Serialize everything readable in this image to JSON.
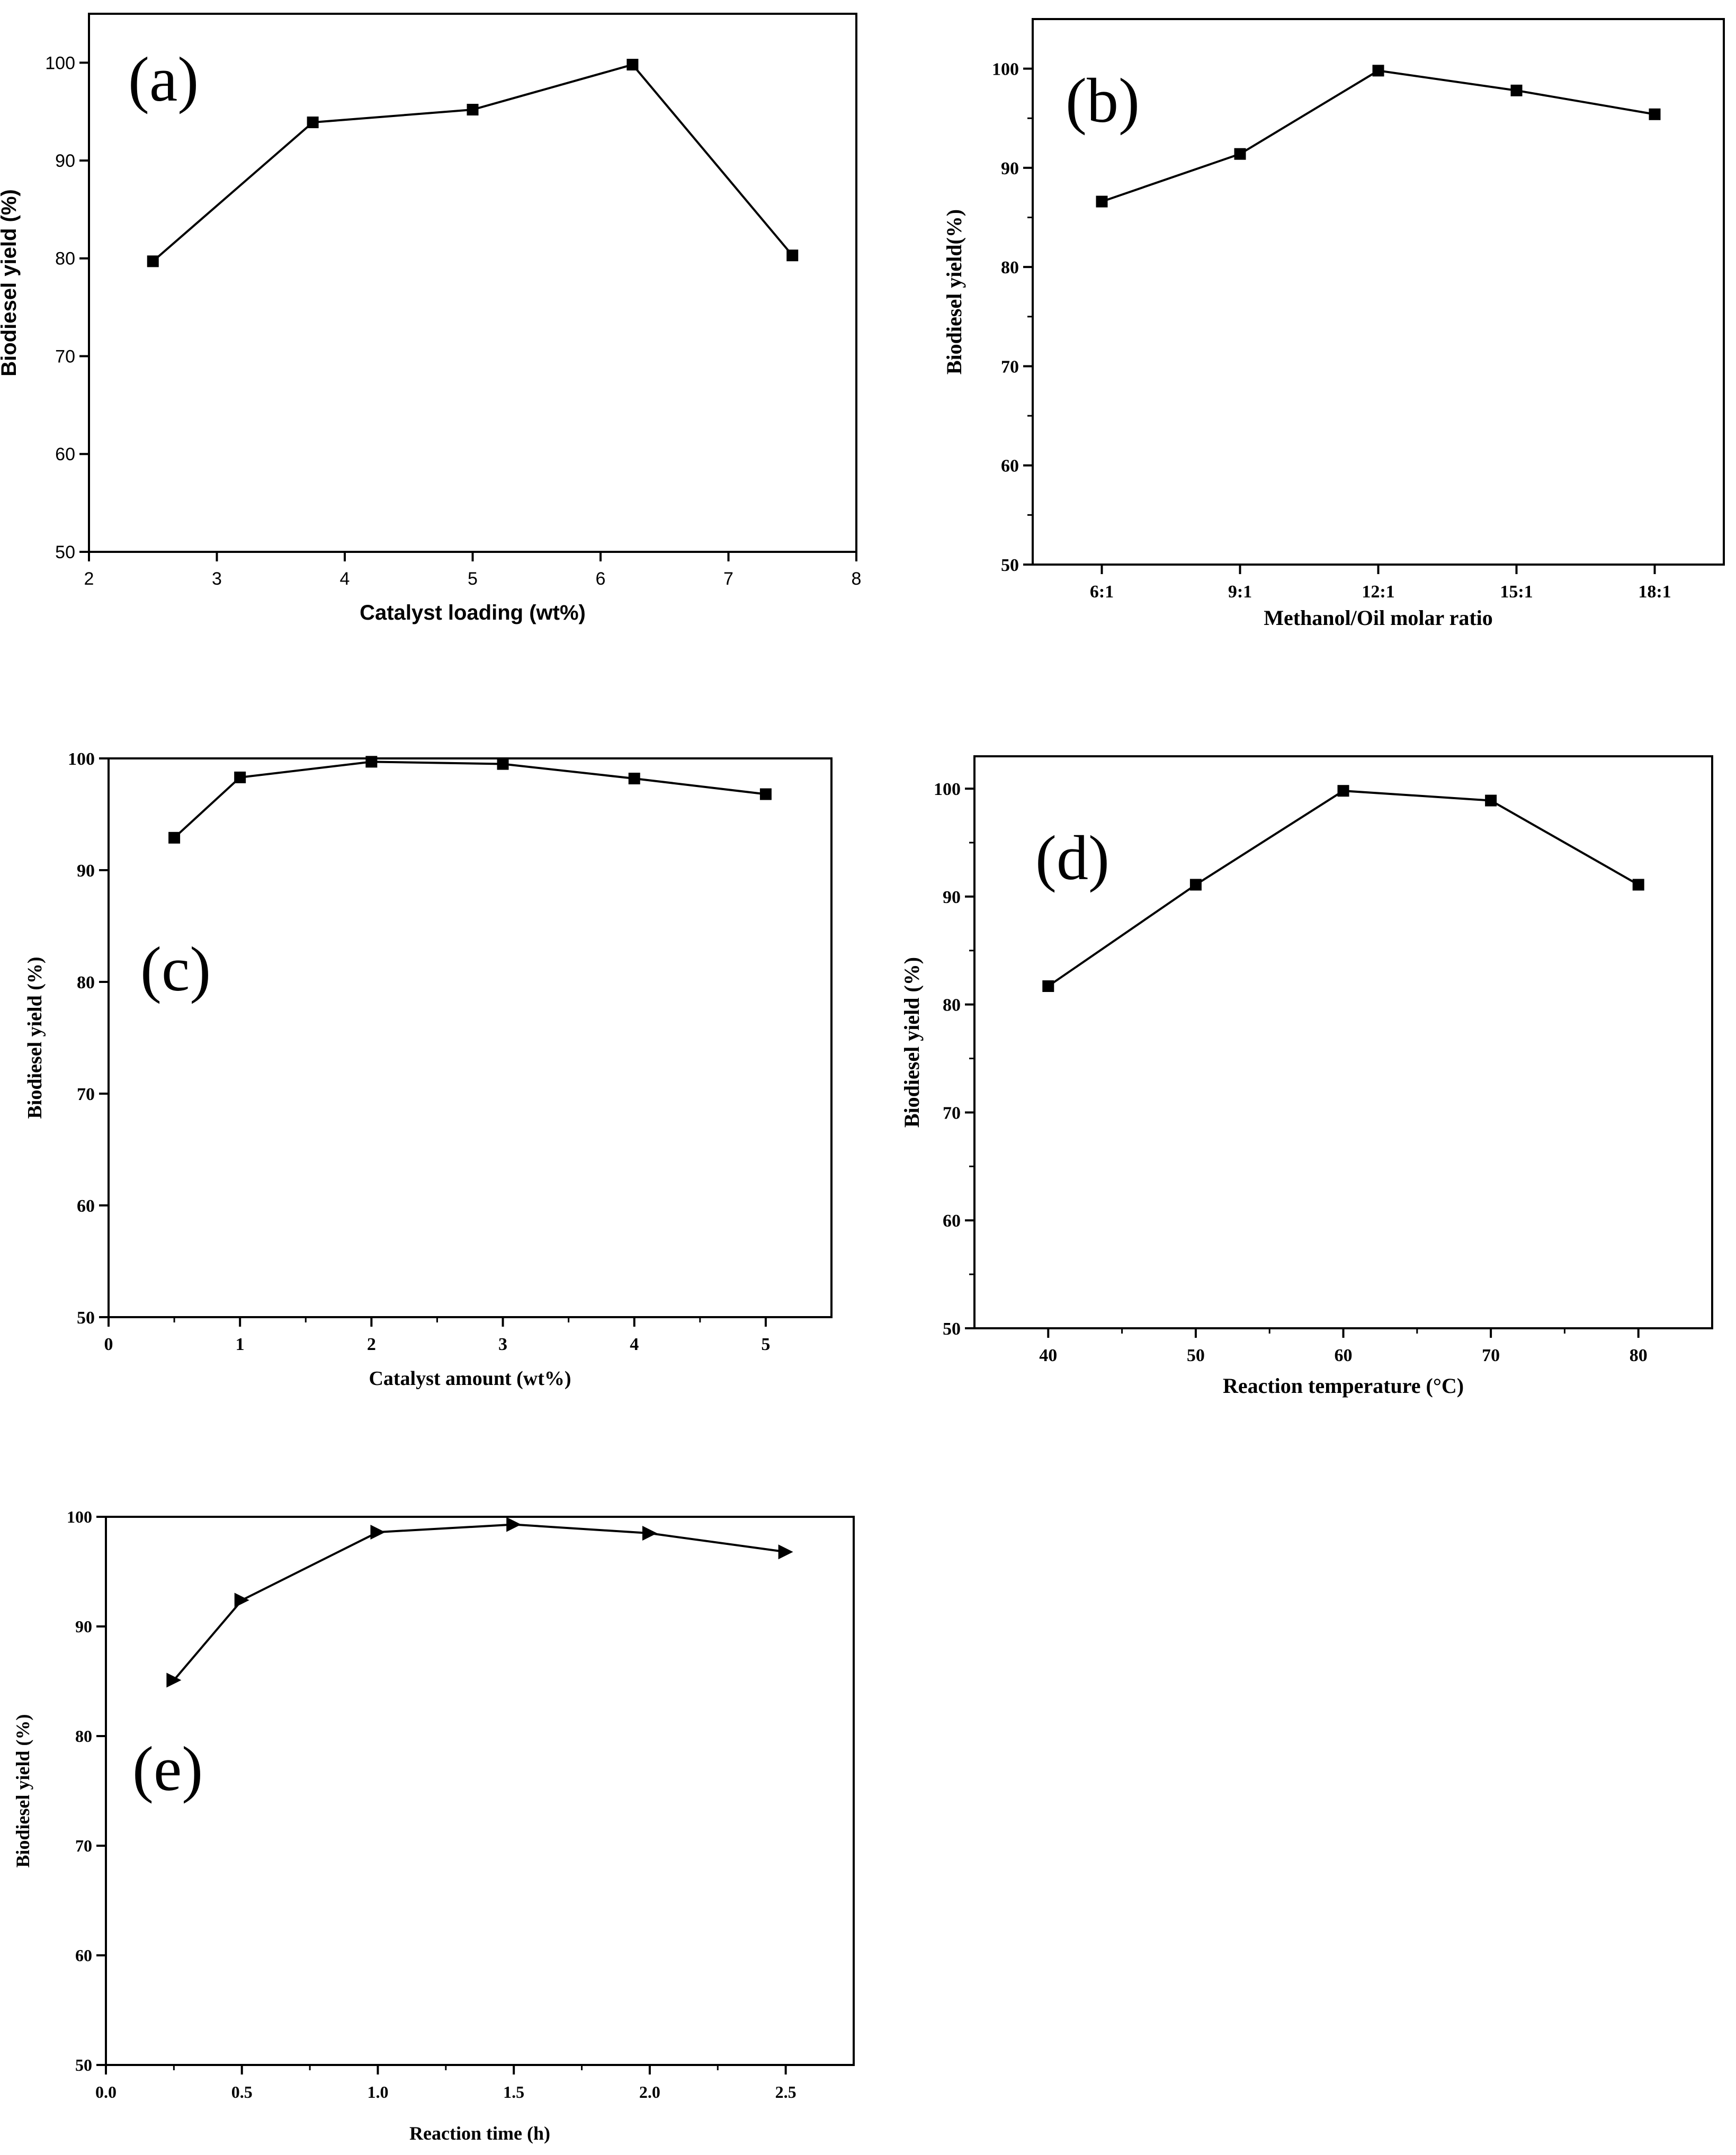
{
  "chart_data": [
    {
      "type": "line",
      "panel_label": "(a)",
      "xlabel": "Catalyst loading (wt%)",
      "ylabel": "Biodiesel yield (%)",
      "xlim": [
        2,
        8
      ],
      "ylim": [
        50,
        105
      ],
      "x_ticks": [
        2,
        3,
        4,
        5,
        6,
        7,
        8
      ],
      "y_ticks": [
        50,
        60,
        70,
        80,
        90,
        100
      ],
      "marker": "square",
      "grid": false,
      "series": [
        {
          "x": [
            2.5,
            3.75,
            5.0,
            6.25,
            7.5
          ],
          "values": [
            79.7,
            93.9,
            95.2,
            99.8,
            80.3
          ]
        }
      ]
    },
    {
      "type": "line",
      "panel_label": "(b)",
      "xlabel": "Methanol/Oil molar ratio",
      "ylabel": "Biodiesel yield(%)",
      "categories": [
        "6:1",
        "9:1",
        "12:1",
        "15:1",
        "18:1"
      ],
      "ylim": [
        50,
        105
      ],
      "y_ticks": [
        50,
        60,
        70,
        80,
        90,
        100
      ],
      "marker": "square",
      "grid": false,
      "series": [
        {
          "values": [
            86.6,
            91.4,
            99.8,
            97.8,
            95.4
          ]
        }
      ]
    },
    {
      "type": "line",
      "panel_label": "(c)",
      "xlabel": "Catalyst amount (wt%)",
      "ylabel": "Biodiesel yield (%)",
      "xlim": [
        0,
        5.5
      ],
      "ylim": [
        50,
        100
      ],
      "x_ticks": [
        0,
        1,
        2,
        3,
        4,
        5
      ],
      "y_ticks": [
        50,
        60,
        70,
        80,
        90,
        100
      ],
      "marker": "square",
      "grid": false,
      "series": [
        {
          "x": [
            0.5,
            1,
            2,
            3,
            4,
            5
          ],
          "values": [
            92.9,
            98.3,
            99.7,
            99.5,
            98.2,
            96.8
          ]
        }
      ]
    },
    {
      "type": "line",
      "panel_label": "(d)",
      "xlabel": "Reaction temperature (°C)",
      "ylabel": "Biodiesel yield (%)",
      "xlim": [
        35,
        85
      ],
      "ylim": [
        50,
        103
      ],
      "x_ticks": [
        40,
        50,
        60,
        70,
        80
      ],
      "y_ticks": [
        50,
        60,
        70,
        80,
        90,
        100
      ],
      "marker": "square",
      "grid": false,
      "series": [
        {
          "x": [
            40,
            50,
            60,
            70,
            80
          ],
          "values": [
            81.7,
            91.1,
            99.8,
            98.9,
            91.1
          ]
        }
      ]
    },
    {
      "type": "line",
      "panel_label": "(e)",
      "xlabel": "Reaction time (h)",
      "ylabel": "Biodiesel yield (%)",
      "xlim": [
        0.0,
        2.75
      ],
      "ylim": [
        50,
        100
      ],
      "x_ticks": [
        "0.0",
        "0.5",
        "1.0",
        "1.5",
        "2.0",
        "2.5"
      ],
      "y_ticks": [
        50,
        60,
        70,
        80,
        90,
        100
      ],
      "marker": "triangle-right",
      "grid": false,
      "series": [
        {
          "x": [
            0.25,
            0.5,
            1.0,
            1.5,
            2.0,
            2.5
          ],
          "values": [
            85.1,
            92.4,
            98.6,
            99.3,
            98.5,
            96.8
          ]
        }
      ]
    }
  ]
}
